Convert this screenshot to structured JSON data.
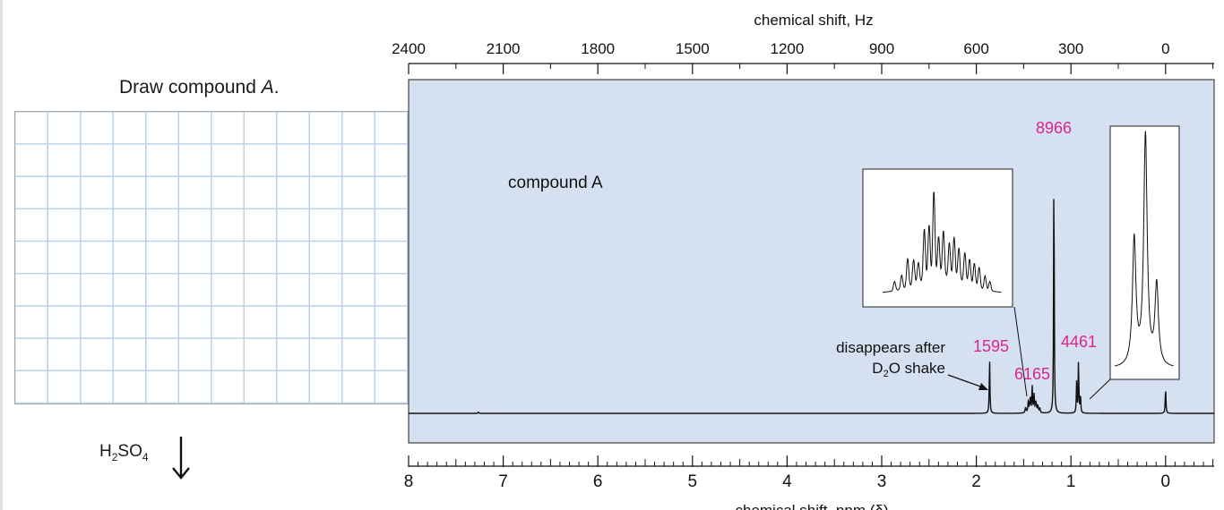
{
  "prompt": {
    "text": "Draw compound ",
    "compound": "A",
    "end": "."
  },
  "reagent": {
    "main": "H",
    "sub1": "2",
    "mid": "SO",
    "sub2": "4"
  },
  "chart_data": {
    "type": "line",
    "title": "",
    "label": "compound A",
    "xlabel": "chemical shift, ppm (δ)",
    "x2label": "chemical shift, Hz",
    "xlim": [
      8.0,
      -0.5
    ],
    "x_ticks_ppm": [
      "8",
      "7",
      "6",
      "5",
      "4",
      "3",
      "2",
      "1",
      "0"
    ],
    "x_ticks_hz": [
      "2400",
      "2100",
      "1800",
      "1500",
      "1200",
      "900",
      "600",
      "300",
      "0"
    ],
    "peaks": [
      {
        "ppm": 1.86,
        "integral": "1595",
        "note": "OH singlet"
      },
      {
        "ppm": 1.43,
        "integral": "6165",
        "note": "multiplet"
      },
      {
        "ppm": 1.18,
        "integral": "8966",
        "note": "singlet"
      },
      {
        "ppm": 0.92,
        "integral": "4461",
        "note": "triplet"
      },
      {
        "ppm": 0.0,
        "integral": "",
        "note": "TMS reference"
      }
    ],
    "annotation_lines": [
      "disappears after",
      "D",
      "2",
      "O shake"
    ],
    "color_integral": "#e0248f",
    "color_plot_bg": "#d5e0f0"
  }
}
